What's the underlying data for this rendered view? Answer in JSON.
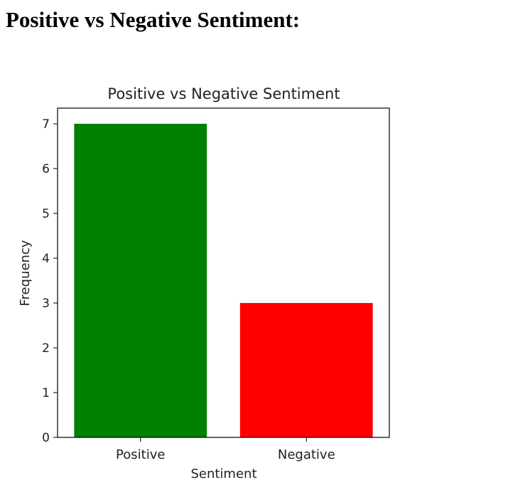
{
  "page": {
    "heading": "Positive vs Negative Sentiment:"
  },
  "chart_data": {
    "type": "bar",
    "title": "Positive vs Negative Sentiment",
    "xlabel": "Sentiment",
    "ylabel": "Frequency",
    "categories": [
      "Positive",
      "Negative"
    ],
    "values": [
      7,
      3
    ],
    "colors": [
      "#008000",
      "#ff0000"
    ],
    "ylim": [
      0,
      7.35
    ],
    "yticks": [
      0,
      1,
      2,
      3,
      4,
      5,
      6,
      7
    ],
    "grid": false,
    "legend": "none"
  }
}
